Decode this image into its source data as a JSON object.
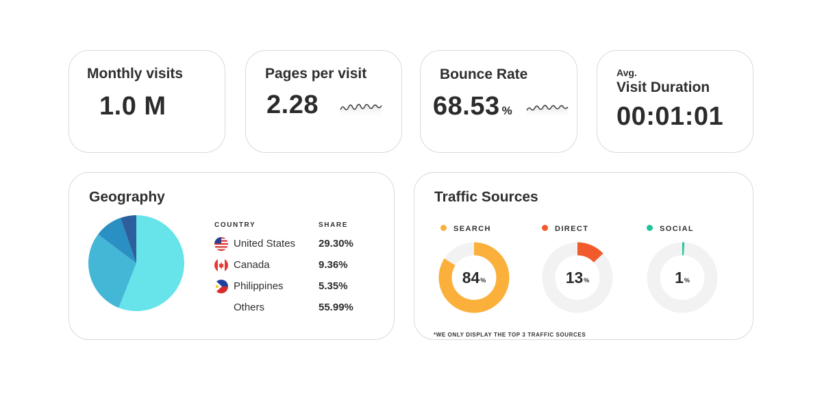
{
  "metrics": {
    "monthly_visits": {
      "label": "Monthly visits",
      "value": "1.0 M"
    },
    "pages_per_visit": {
      "label": "Pages per visit",
      "value": "2.28"
    },
    "bounce_rate": {
      "label": "Bounce Rate",
      "value": "68.53",
      "unit": "%"
    },
    "visit_duration": {
      "label_top": "Avg.",
      "label": "Visit Duration",
      "value": "00:01:01"
    }
  },
  "geography": {
    "title": "Geography",
    "col_country": "COUNTRY",
    "col_share": "SHARE",
    "rows": [
      {
        "country": "United States",
        "share": "29.30%",
        "flag": "us-flag-icon"
      },
      {
        "country": "Canada",
        "share": "9.36%",
        "flag": "canada-flag-icon"
      },
      {
        "country": "Philippines",
        "share": "5.35%",
        "flag": "philippines-flag-icon"
      },
      {
        "country": "Others",
        "share": "55.99%",
        "flag": ""
      }
    ]
  },
  "traffic": {
    "title": "Traffic Sources",
    "footnote": "*WE ONLY DISPLAY THE TOP 3 TRAFFIC SOURCES",
    "sources": [
      {
        "label": "SEARCH",
        "value": "84",
        "unit": "%",
        "color": "#fbb03b"
      },
      {
        "label": "DIRECT",
        "value": "13",
        "unit": "%",
        "color": "#f15a2b"
      },
      {
        "label": "SOCIAL",
        "value": "1",
        "unit": "%",
        "color": "#1fc39a"
      }
    ]
  },
  "chart_data": {
    "type": "pie",
    "title": "Geography",
    "categories": [
      "United States",
      "Canada",
      "Philippines",
      "Others"
    ],
    "values": [
      29.3,
      9.36,
      5.35,
      55.99
    ],
    "colors": [
      "#44b6d6",
      "#2a8fc2",
      "#2e5f9c",
      "#67e3ea"
    ]
  },
  "colors": {
    "donut_track": "#f2f2f2",
    "card_border": "#d9d9d9"
  }
}
